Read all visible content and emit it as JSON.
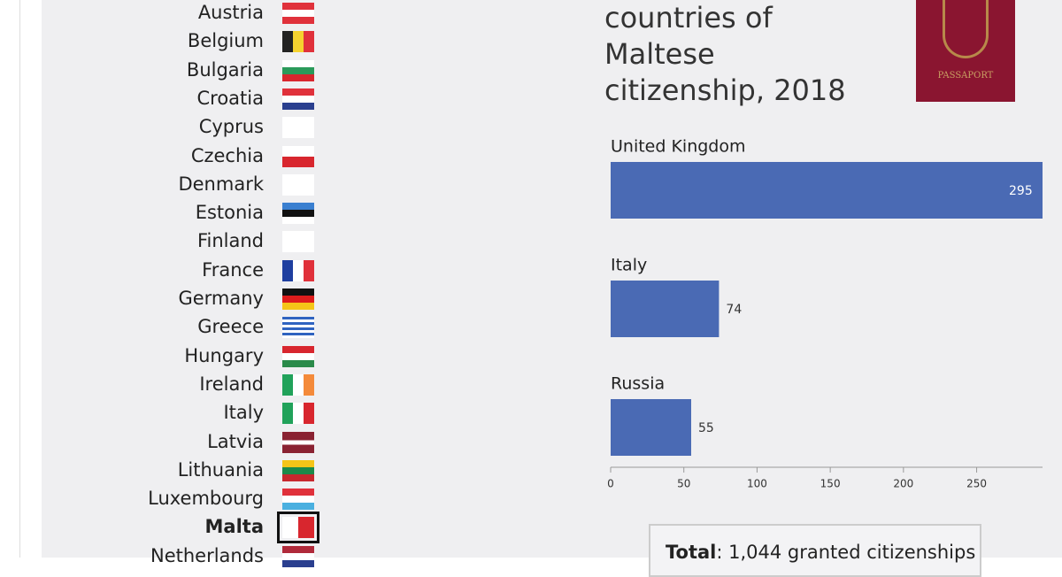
{
  "countries": [
    "Austria",
    "Belgium",
    "Bulgaria",
    "Croatia",
    "Cyprus",
    "Czechia",
    "Denmark",
    "Estonia",
    "Finland",
    "France",
    "Germany",
    "Greece",
    "Hungary",
    "Ireland",
    "Italy",
    "Latvia",
    "Lithuania",
    "Luxembourg",
    "Malta",
    "Netherlands"
  ],
  "passport_text": "PASSAPORT",
  "total": {
    "label": "Total",
    "text": ": 1,044 granted citizenships"
  },
  "chart_data": {
    "type": "hbar",
    "title": "countries of Maltese citizenship, 2018",
    "categories": [
      "United Kingdom",
      "Italy",
      "Russia"
    ],
    "values": [
      295,
      74,
      55
    ],
    "color": "#4a6ab4",
    "xlim": [
      0,
      295
    ],
    "xticks": [
      0,
      50,
      100,
      150,
      200,
      250
    ]
  }
}
